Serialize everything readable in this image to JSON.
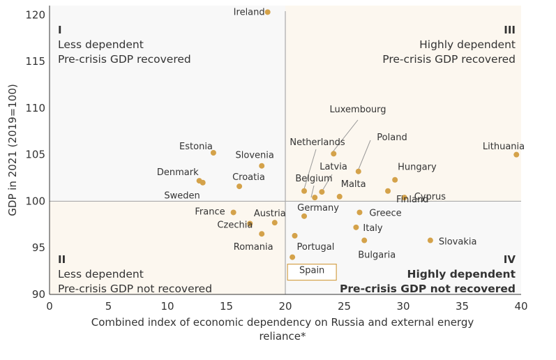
{
  "chart_data": {
    "type": "scatter",
    "xlabel": [
      "Combined index of economic dependency on Russia and external energy",
      "reliance*"
    ],
    "ylabel": "GDP in 2021 (2019=100)",
    "xlim": [
      0,
      40
    ],
    "ylim": [
      90,
      121
    ],
    "xticks": [
      0,
      5,
      10,
      15,
      20,
      25,
      30,
      35,
      40
    ],
    "yticks": [
      90,
      95,
      100,
      105,
      110,
      115,
      120
    ],
    "grid": false,
    "threshold_x": 20,
    "threshold_y": 100,
    "colors": {
      "marker": "#d4a24a",
      "quad_fill_light": "#fcf7ef",
      "quad_fill_neutral": "#f8f8f8",
      "divider": "#aaaaaa",
      "highlight_box": "#d4a24a"
    },
    "quadrants": [
      {
        "id": "I",
        "line1": "Less dependent",
        "line2": "Pre-crisis GDP recovered",
        "position": "top-left",
        "bold": false
      },
      {
        "id": "III",
        "line1": "Highly dependent",
        "line2": "Pre-crisis GDP recovered",
        "position": "top-right",
        "bold": false
      },
      {
        "id": "II",
        "line1": "Less dependent",
        "line2": "Pre-crisis GDP not recovered",
        "position": "bottom-left",
        "bold": false
      },
      {
        "id": "IV",
        "line1": "Highly dependent",
        "line2": "Pre-crisis GDP not recovered",
        "position": "bottom-right",
        "bold": true
      }
    ],
    "points": [
      {
        "name": "Ireland",
        "x": 18.5,
        "y": 120.3
      },
      {
        "name": "Luxembourg",
        "x": 24.1,
        "y": 105.1
      },
      {
        "name": "Poland",
        "x": 26.2,
        "y": 103.2
      },
      {
        "name": "Lithuania",
        "x": 39.6,
        "y": 105.0
      },
      {
        "name": "Netherlands",
        "x": 21.6,
        "y": 101.1
      },
      {
        "name": "Belgium",
        "x": 22.5,
        "y": 100.4
      },
      {
        "name": "Latvia",
        "x": 23.1,
        "y": 101.0
      },
      {
        "name": "Malta",
        "x": 24.6,
        "y": 100.5
      },
      {
        "name": "Hungary",
        "x": 29.3,
        "y": 102.3
      },
      {
        "name": "Finland",
        "x": 28.7,
        "y": 101.1
      },
      {
        "name": "Cyprus",
        "x": 30.1,
        "y": 100.4
      },
      {
        "name": "Estonia",
        "x": 13.9,
        "y": 105.2
      },
      {
        "name": "Slovenia",
        "x": 18.0,
        "y": 103.8
      },
      {
        "name": "Denmark",
        "x": 12.7,
        "y": 102.2
      },
      {
        "name": "Sweden",
        "x": 13.0,
        "y": 102.0
      },
      {
        "name": "Croatia",
        "x": 16.1,
        "y": 101.6
      },
      {
        "name": "France",
        "x": 15.6,
        "y": 98.8
      },
      {
        "name": "Austria",
        "x": 19.1,
        "y": 97.7
      },
      {
        "name": "Czechia",
        "x": 17.0,
        "y": 97.6
      },
      {
        "name": "Romania",
        "x": 18.0,
        "y": 96.5
      },
      {
        "name": "Germany",
        "x": 21.6,
        "y": 98.4
      },
      {
        "name": "Greece",
        "x": 26.3,
        "y": 98.8
      },
      {
        "name": "Italy",
        "x": 26.0,
        "y": 97.2
      },
      {
        "name": "Portugal",
        "x": 20.8,
        "y": 96.3
      },
      {
        "name": "Bulgaria",
        "x": 26.7,
        "y": 95.8
      },
      {
        "name": "Slovakia",
        "x": 32.3,
        "y": 95.8
      },
      {
        "name": "Spain",
        "x": 20.6,
        "y": 94.0
      }
    ]
  }
}
